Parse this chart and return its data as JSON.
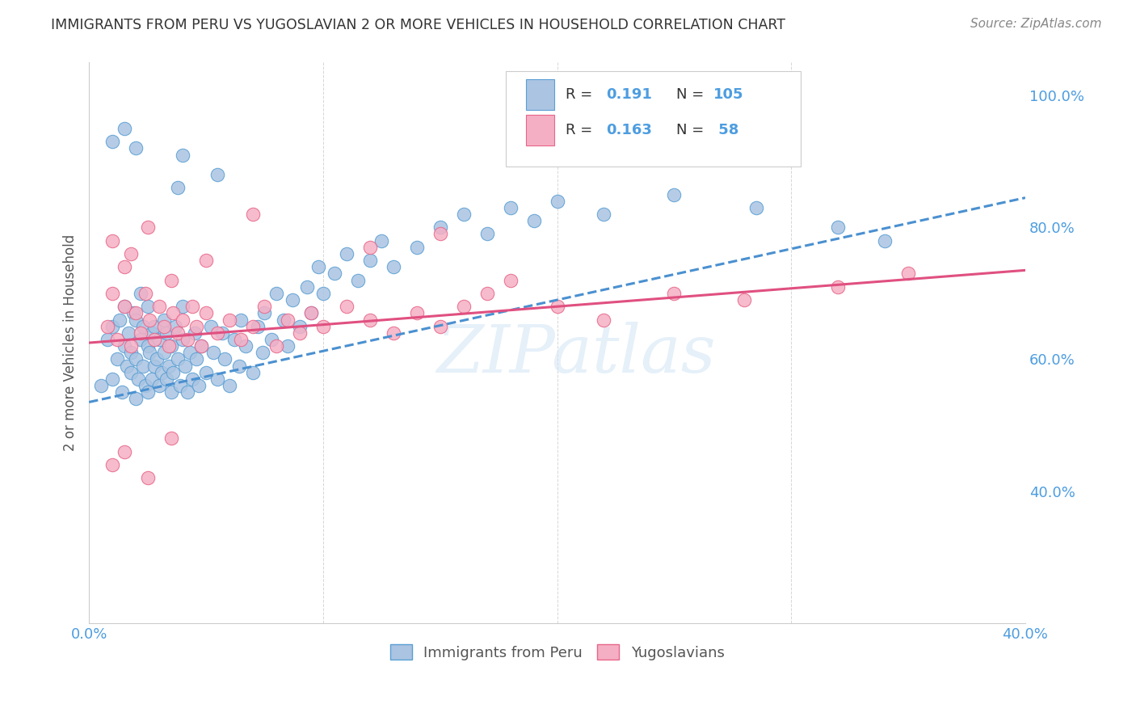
{
  "title": "IMMIGRANTS FROM PERU VS YUGOSLAVIAN 2 OR MORE VEHICLES IN HOUSEHOLD CORRELATION CHART",
  "source": "Source: ZipAtlas.com",
  "ylabel": "2 or more Vehicles in Household",
  "x_min": 0.0,
  "x_max": 0.4,
  "y_min": 0.2,
  "y_max": 1.05,
  "color_peru": "#aac4e2",
  "color_yugo": "#f5afc4",
  "color_peru_edge": "#5a9fd4",
  "color_yugo_edge": "#e8668a",
  "color_peru_line": "#4a90d0",
  "color_yugo_line": "#e05080",
  "tick_color": "#4d9de0",
  "bg_color": "#ffffff",
  "grid_color": "#cccccc",
  "title_color": "#333333",
  "watermark": "ZIPatlas",
  "peru_trend_x": [
    0.0,
    0.4
  ],
  "peru_trend_y": [
    0.535,
    0.845
  ],
  "yugo_trend_x": [
    0.0,
    0.4
  ],
  "yugo_trend_y": [
    0.625,
    0.735
  ],
  "peru_x": [
    0.005,
    0.008,
    0.01,
    0.01,
    0.012,
    0.013,
    0.014,
    0.015,
    0.015,
    0.016,
    0.017,
    0.018,
    0.018,
    0.019,
    0.02,
    0.02,
    0.02,
    0.021,
    0.022,
    0.022,
    0.023,
    0.023,
    0.024,
    0.025,
    0.025,
    0.025,
    0.026,
    0.027,
    0.027,
    0.028,
    0.028,
    0.029,
    0.03,
    0.03,
    0.031,
    0.032,
    0.032,
    0.033,
    0.033,
    0.034,
    0.035,
    0.035,
    0.036,
    0.037,
    0.038,
    0.039,
    0.04,
    0.04,
    0.041,
    0.042,
    0.043,
    0.044,
    0.045,
    0.046,
    0.047,
    0.048,
    0.05,
    0.052,
    0.053,
    0.055,
    0.057,
    0.058,
    0.06,
    0.062,
    0.064,
    0.065,
    0.067,
    0.07,
    0.072,
    0.074,
    0.075,
    0.078,
    0.08,
    0.083,
    0.085,
    0.087,
    0.09,
    0.093,
    0.095,
    0.098,
    0.1,
    0.105,
    0.11,
    0.115,
    0.12,
    0.125,
    0.13,
    0.14,
    0.15,
    0.16,
    0.17,
    0.18,
    0.19,
    0.2,
    0.22,
    0.25,
    0.285,
    0.32,
    0.34,
    0.038,
    0.01,
    0.015,
    0.02,
    0.04,
    0.055
  ],
  "peru_y": [
    0.56,
    0.63,
    0.57,
    0.65,
    0.6,
    0.66,
    0.55,
    0.62,
    0.68,
    0.59,
    0.64,
    0.58,
    0.61,
    0.67,
    0.54,
    0.6,
    0.66,
    0.57,
    0.63,
    0.7,
    0.59,
    0.65,
    0.56,
    0.62,
    0.68,
    0.55,
    0.61,
    0.57,
    0.64,
    0.59,
    0.65,
    0.6,
    0.56,
    0.63,
    0.58,
    0.66,
    0.61,
    0.57,
    0.64,
    0.59,
    0.55,
    0.62,
    0.58,
    0.65,
    0.6,
    0.56,
    0.63,
    0.68,
    0.59,
    0.55,
    0.61,
    0.57,
    0.64,
    0.6,
    0.56,
    0.62,
    0.58,
    0.65,
    0.61,
    0.57,
    0.64,
    0.6,
    0.56,
    0.63,
    0.59,
    0.66,
    0.62,
    0.58,
    0.65,
    0.61,
    0.67,
    0.63,
    0.7,
    0.66,
    0.62,
    0.69,
    0.65,
    0.71,
    0.67,
    0.74,
    0.7,
    0.73,
    0.76,
    0.72,
    0.75,
    0.78,
    0.74,
    0.77,
    0.8,
    0.82,
    0.79,
    0.83,
    0.81,
    0.84,
    0.82,
    0.85,
    0.83,
    0.8,
    0.78,
    0.86,
    0.93,
    0.95,
    0.92,
    0.91,
    0.88
  ],
  "yugo_x": [
    0.008,
    0.01,
    0.012,
    0.015,
    0.015,
    0.018,
    0.02,
    0.022,
    0.024,
    0.026,
    0.028,
    0.03,
    0.032,
    0.034,
    0.036,
    0.038,
    0.04,
    0.042,
    0.044,
    0.046,
    0.048,
    0.05,
    0.055,
    0.06,
    0.065,
    0.07,
    0.075,
    0.08,
    0.085,
    0.09,
    0.095,
    0.1,
    0.11,
    0.12,
    0.13,
    0.14,
    0.15,
    0.16,
    0.17,
    0.18,
    0.2,
    0.22,
    0.25,
    0.28,
    0.32,
    0.35,
    0.01,
    0.018,
    0.025,
    0.035,
    0.05,
    0.07,
    0.12,
    0.15,
    0.01,
    0.015,
    0.025,
    0.035
  ],
  "yugo_y": [
    0.65,
    0.7,
    0.63,
    0.68,
    0.74,
    0.62,
    0.67,
    0.64,
    0.7,
    0.66,
    0.63,
    0.68,
    0.65,
    0.62,
    0.67,
    0.64,
    0.66,
    0.63,
    0.68,
    0.65,
    0.62,
    0.67,
    0.64,
    0.66,
    0.63,
    0.65,
    0.68,
    0.62,
    0.66,
    0.64,
    0.67,
    0.65,
    0.68,
    0.66,
    0.64,
    0.67,
    0.65,
    0.68,
    0.7,
    0.72,
    0.68,
    0.66,
    0.7,
    0.69,
    0.71,
    0.73,
    0.78,
    0.76,
    0.8,
    0.72,
    0.75,
    0.82,
    0.77,
    0.79,
    0.44,
    0.46,
    0.42,
    0.48
  ]
}
